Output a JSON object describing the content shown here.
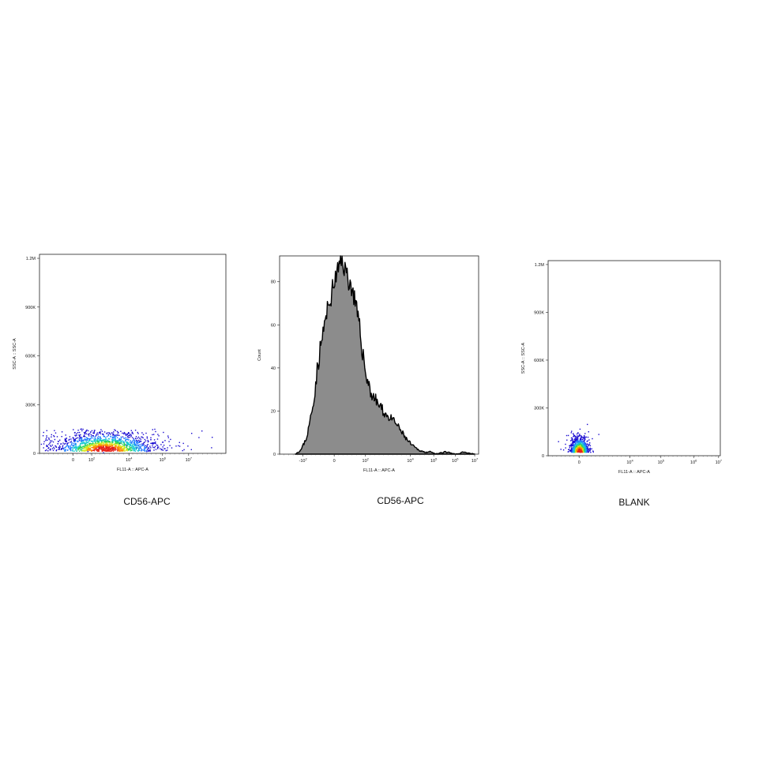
{
  "chart_data": [
    {
      "type": "scatter",
      "subtype": "density-dot-plot",
      "caption": "CD56-APC",
      "xlabel": "FL11-A :: APC-A",
      "ylabel": "SSC-A :: SSC-A",
      "x_scale": "biexponential",
      "x_ticks": [
        "0",
        "10^2",
        "10^4",
        "10^6",
        "10^7"
      ],
      "y_ticks": [
        "0",
        "300K",
        "600K",
        "900K",
        "1.2M"
      ],
      "ylim": [
        0,
        1200000
      ],
      "population": {
        "x_center_decades": 1.5,
        "x_spread": 2.6,
        "y_center": 40000,
        "y_spread": 55000,
        "max_y": 150000
      }
    },
    {
      "type": "area",
      "subtype": "histogram",
      "caption": "CD56-APC",
      "xlabel": "FL11-A :: APC-A",
      "ylabel": "Count",
      "x_scale": "biexponential",
      "x_ticks": [
        "-10^2",
        "0",
        "10^2",
        "10^4",
        "10^5",
        "10^6",
        "10^7"
      ],
      "y_ticks": [
        "0",
        "20",
        "40",
        "60",
        "80"
      ],
      "ylim": [
        0,
        92
      ],
      "fill_color": "#8c8c8c",
      "x": [
        -2.2,
        -1.9,
        -1.6,
        -1.3,
        -1.0,
        -0.7,
        -0.4,
        -0.1,
        0.2,
        0.5,
        0.8,
        1.1,
        1.4,
        1.7,
        2.0,
        2.3,
        2.6,
        2.9,
        3.2,
        3.5,
        3.8,
        4.1,
        4.4,
        4.7,
        5.0,
        5.5,
        6.0,
        6.5,
        7.0
      ],
      "values": [
        0,
        2,
        8,
        22,
        44,
        60,
        72,
        83,
        90,
        82,
        74,
        58,
        38,
        28,
        24,
        20,
        17,
        15,
        11,
        7,
        4,
        2,
        1,
        1,
        0,
        1,
        0,
        1,
        0
      ]
    },
    {
      "type": "scatter",
      "subtype": "density-dot-plot",
      "caption": "BLANK",
      "xlabel": "FL11-A :: APC-A",
      "ylabel": "SSC-A :: SSC-A",
      "x_scale": "biexponential",
      "x_ticks": [
        "0",
        "10^4",
        "10^5",
        "10^6",
        "10^7"
      ],
      "y_ticks": [
        "0",
        "300K",
        "600K",
        "900K",
        "1.2M"
      ],
      "ylim": [
        0,
        1200000
      ],
      "population": {
        "x_center_decades": 0.0,
        "x_spread": 0.5,
        "y_center": 60000,
        "y_spread": 45000,
        "max_y": 250000
      }
    }
  ]
}
